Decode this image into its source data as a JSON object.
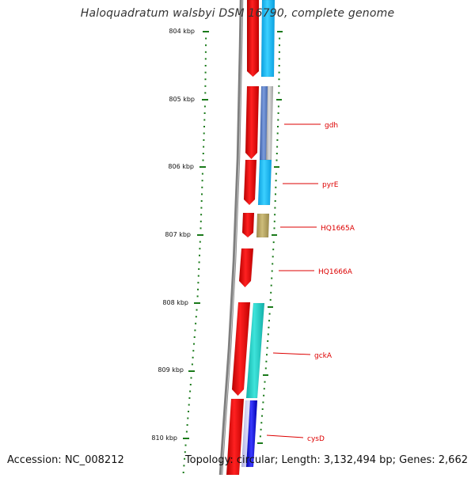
{
  "title": "Haloquadratum walsbyi DSM 16790, complete genome",
  "footer": {
    "accession": "Accession: NC_008212",
    "summary": "Topology: circular; Length: 3,132,494 bp; Genes: 2,662"
  },
  "ticks": [
    "804 kbp",
    "805 kbp",
    "806 kbp",
    "807 kbp",
    "808 kbp",
    "809 kbp",
    "810 kbp"
  ],
  "genes": [
    "gdh",
    "pyrE",
    "HQ1665A",
    "HQ1666A",
    "gckA",
    "cysD"
  ],
  "colors": {
    "backbone": "#7f7f7f",
    "scale": "#1a7a1a",
    "gene_red": "#ff0000",
    "label_red": "#dd0000",
    "cyan": "#19c3ff",
    "teal": "#23d1c8",
    "olive": "#bfae6a",
    "steelblue": "#5a7ec8",
    "gray": "#bdbdbd",
    "navy": "#1a1ad8",
    "lavender": "#c9c9f0"
  }
}
